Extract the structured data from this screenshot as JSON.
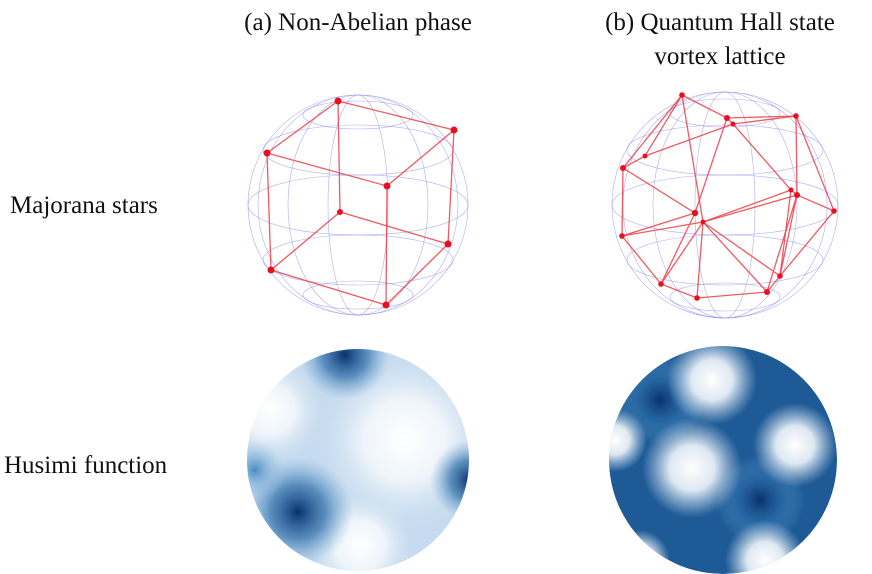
{
  "columns": {
    "a": "(a) Non-Abelian phase",
    "b_line1": "(b) Quantum Hall state",
    "b_line2": "vortex lattice"
  },
  "rows": {
    "majorana": "Majorana stars",
    "husimi": "Husimi function"
  }
}
